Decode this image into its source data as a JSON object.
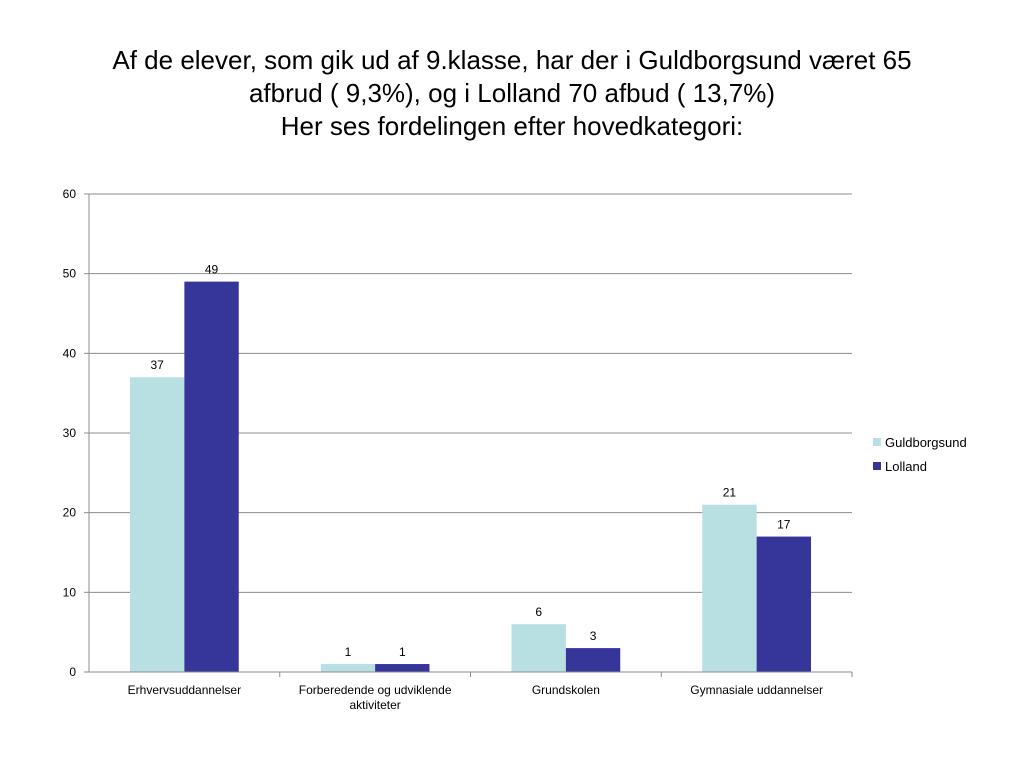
{
  "title": {
    "line1": "Af de elever, som gik ud af 9.klasse, har der i Guldborgsund været 65",
    "line2": "afbrud ( 9,3%), og i Lolland 70 afbud ( 13,7%)",
    "line3": "Her ses fordelingen efter hovedkategori:"
  },
  "chart_data": {
    "type": "bar",
    "categories": [
      [
        "Erhvervsuddannelser"
      ],
      [
        "Forberedende og udviklende",
        "aktiviteter"
      ],
      [
        "Grundskolen"
      ],
      [
        "Gymnasiale uddannelser"
      ]
    ],
    "series": [
      {
        "name": "Guldborgsund",
        "color": "#b8e0e3",
        "values": [
          37,
          1,
          6,
          21
        ]
      },
      {
        "name": "Lolland",
        "color": "#35359a",
        "values": [
          49,
          1,
          3,
          17
        ]
      }
    ],
    "ylim": [
      0,
      60
    ],
    "yticks": [
      0,
      10,
      20,
      30,
      40,
      50,
      60
    ],
    "grid": true,
    "legend_position": "right"
  }
}
